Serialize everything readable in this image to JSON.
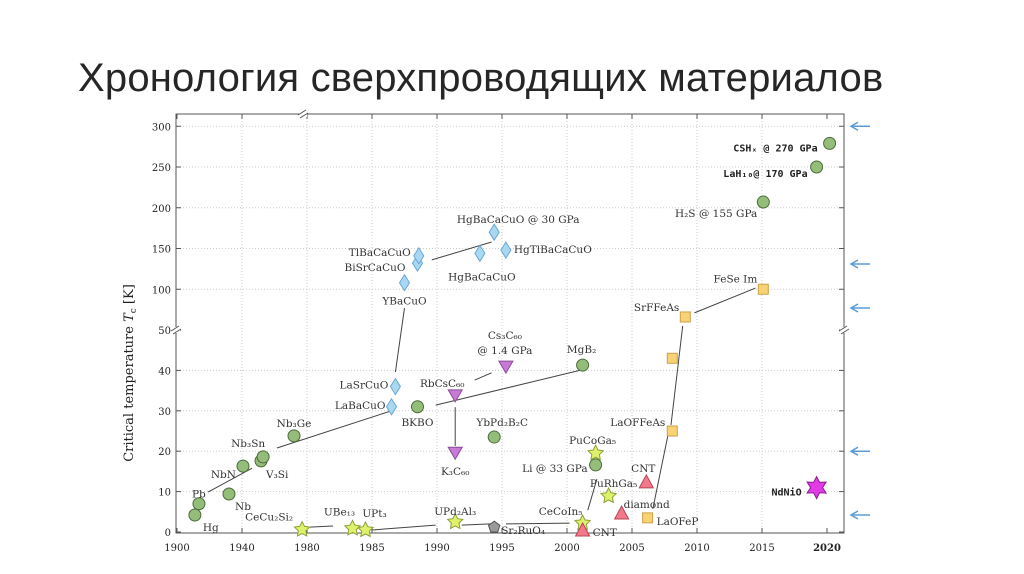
{
  "slide": {
    "title": "Хронология сверхпроводящих материалов"
  },
  "chart_data": {
    "type": "scatter",
    "title": "",
    "ylabel": "Critical temperature T_c [K]",
    "ylabel_parts": {
      "main": "Critical temperature ",
      "symbol": "T",
      "sub": "c",
      "unit": " [K]"
    },
    "xlabel": "",
    "x_axis": {
      "scale": "piecewise (compressed 1900–1980, expanded 1980–2020)",
      "range": [
        1900,
        2020
      ],
      "ticks": [
        1900,
        1940,
        1980,
        1985,
        1990,
        1995,
        2000,
        2005,
        2010,
        2015,
        2020
      ],
      "tick_labels": [
        "1900",
        "1940",
        "1980",
        "1985",
        "1990",
        "1995",
        "2000",
        "2005",
        "2010",
        "2015",
        "2020"
      ]
    },
    "y_axis": {
      "scale": "broken axis at 50 (expanded 0–50, compressed 50–300)",
      "range": [
        0,
        300
      ],
      "ticks": [
        0,
        10,
        20,
        30,
        40,
        50,
        100,
        150,
        200,
        250,
        300
      ],
      "tick_labels": [
        "0",
        "10",
        "20",
        "30",
        "40",
        "50",
        "100",
        "150",
        "200",
        "250",
        "300"
      ]
    },
    "grid": true,
    "marker_colors": {
      "circle": "#93bd78",
      "diamond": "#a9d8f3",
      "tri_down": "#c77ad6",
      "star": "#dff06a",
      "pentagon": "#9a9a9a",
      "tri_up": "#f07a8a",
      "square": "#f8d274",
      "hexagram": "#e23be6"
    },
    "points": [
      {
        "label": "Hg",
        "x": 1911,
        "y": 4.2,
        "marker": "circle"
      },
      {
        "label": "Pb",
        "x": 1913.5,
        "y": 7,
        "marker": "circle"
      },
      {
        "label": "Nb",
        "x": 1932,
        "y": 9.4,
        "marker": "circle"
      },
      {
        "label": "NbN",
        "x": 1940.6,
        "y": 16.3,
        "marker": "circle"
      },
      {
        "label": "V₃Si",
        "x": 1951.7,
        "y": 17.6,
        "marker": "circle"
      },
      {
        "label": "Nb₃Sn",
        "x": 1953,
        "y": 18.6,
        "marker": "circle"
      },
      {
        "label": "Nb₃Ge",
        "x": 1972,
        "y": 23.8,
        "marker": "circle"
      },
      {
        "label": "BKBO",
        "x": 1988.5,
        "y": 31,
        "marker": "circle"
      },
      {
        "label": "LaBaCuO",
        "x": 1986.5,
        "y": 31,
        "marker": "diamond"
      },
      {
        "label": "LaSrCuO",
        "x": 1986.8,
        "y": 36,
        "marker": "diamond"
      },
      {
        "label": "YBaCuO",
        "x": 1987.5,
        "y": 108,
        "marker": "diamond"
      },
      {
        "label": "BiSrCaCuO",
        "x": 1988.5,
        "y": 132,
        "marker": "diamond"
      },
      {
        "label": "TlBaCaCuO",
        "x": 1988.6,
        "y": 141,
        "marker": "diamond"
      },
      {
        "label": "HgBaCaCuO",
        "x": 1993.3,
        "y": 144,
        "marker": "diamond"
      },
      {
        "label": "HgBaCaCuO @ 30 GPa",
        "x": 1994.4,
        "y": 170,
        "marker": "diamond"
      },
      {
        "label": "HgTlBaCaCuO",
        "x": 1995.3,
        "y": 148,
        "marker": "diamond"
      },
      {
        "label": "K₃C₆₀",
        "x": 1991.4,
        "y": 19.5,
        "marker": "tri_down"
      },
      {
        "label": "RbCsC₆₀",
        "x": 1991.4,
        "y": 33.7,
        "marker": "tri_down"
      },
      {
        "label": "Cs₃C₆₀",
        "label2": "@ 1.4 GPa",
        "x": 1995.3,
        "y": 40.8,
        "marker": "tri_down"
      },
      {
        "label": "MgB₂",
        "x": 2001.2,
        "y": 41.3,
        "marker": "circle"
      },
      {
        "label": "YbPd₂B₂C",
        "x": 1994.4,
        "y": 23.5,
        "marker": "circle"
      },
      {
        "label": "Li @ 33 GPa",
        "x": 2002.2,
        "y": 16.6,
        "marker": "circle"
      },
      {
        "label": "PuCoGa₅",
        "x": 2002.2,
        "y": 19.5,
        "marker": "star"
      },
      {
        "label": "PuRhGa₅",
        "x": 2003.2,
        "y": 8.9,
        "marker": "star"
      },
      {
        "label": "CeCoIn₅",
        "x": 2001.2,
        "y": 2.2,
        "marker": "star"
      },
      {
        "label": "Sr₂RuO₄",
        "x": 1994.4,
        "y": 1.2,
        "marker": "pentagon"
      },
      {
        "label": "UPd₂Al₃",
        "x": 1991.4,
        "y": 2.5,
        "marker": "star"
      },
      {
        "label": "UPt₃",
        "x": 1984.5,
        "y": 0.5,
        "marker": "star"
      },
      {
        "label": "UBe₁₃",
        "x": 1983.5,
        "y": 0.9,
        "marker": "star"
      },
      {
        "label": "CeCu₂Si₂",
        "x": 1977,
        "y": 0.6,
        "marker": "star"
      },
      {
        "label": "CNT",
        "x": 2001.2,
        "y": 0.5,
        "marker": "tri_up"
      },
      {
        "label": "diamond",
        "x": 2004.2,
        "y": 4.7,
        "marker": "tri_up"
      },
      {
        "label": "CNT",
        "x": 2006.1,
        "y": 12.4,
        "marker": "tri_up"
      },
      {
        "label": "LaOFeP",
        "x": 2006.2,
        "y": 3.5,
        "marker": "square"
      },
      {
        "label": "LaOFFeAs",
        "x": 2008.1,
        "y": 25,
        "marker": "square"
      },
      {
        "label": "",
        "x": 2008.1,
        "y": 43,
        "marker": "square"
      },
      {
        "label": "SrFFeAs",
        "x": 2009.1,
        "y": 66,
        "marker": "square"
      },
      {
        "label": "FeSe   Im",
        "x": 2015.1,
        "y": 100,
        "marker": "square"
      },
      {
        "label": "H₂S @ 155 GPa",
        "x": 2015.1,
        "y": 207,
        "marker": "circle"
      },
      {
        "label": "LaH₁₀@  170 GPa",
        "x": 2019.2,
        "y": 250,
        "marker": "circle"
      },
      {
        "label": "CSHₓ @  270 GPa",
        "x": 2020.2,
        "y": 279,
        "marker": "circle"
      },
      {
        "label": "NdNiO",
        "x": 2019.2,
        "y": 11,
        "marker": "hexagram"
      }
    ],
    "trend_lines": [
      [
        [
          1919.1,
          9.9
        ],
        [
          1946.2,
          15.8
        ]
      ],
      [
        [
          1961.5,
          20.8
        ],
        [
          1986.5,
          30
        ]
      ],
      [
        [
          1989.9,
          31.4
        ],
        [
          2001.1,
          40.1
        ]
      ],
      [
        [
          1992.9,
          37.6
        ],
        [
          1994.2,
          39.4
        ]
      ],
      [
        [
          1991.4,
          21.3
        ],
        [
          1991.4,
          30.9
        ]
      ],
      [
        [
          1986.8,
          39.6
        ],
        [
          1987.5,
          77
        ]
      ],
      [
        [
          1989.6,
          136
        ],
        [
          1994.2,
          158
        ]
      ],
      [
        [
          1980.2,
          1.2
        ],
        [
          1982,
          1.5
        ]
      ],
      [
        [
          1985,
          0.5
        ],
        [
          1989.9,
          1.7
        ]
      ],
      [
        [
          1991.9,
          1.7
        ],
        [
          1994.1,
          2
        ]
      ],
      [
        [
          1995.3,
          2
        ],
        [
          2000.2,
          2.2
        ]
      ],
      [
        [
          2001.6,
          5.4
        ],
        [
          2002.3,
          13.1
        ]
      ],
      [
        [
          2006.6,
          5.7
        ],
        [
          2007.8,
          24.5
        ]
      ],
      [
        [
          2008,
          26.5
        ],
        [
          2008.9,
          55
        ]
      ],
      [
        [
          2009.8,
          71
        ],
        [
          2014.5,
          101.5
        ]
      ]
    ],
    "reference_arrows": {
      "color": "#5b9bd5",
      "y_values": [
        300,
        131,
        77,
        20,
        4.2
      ]
    }
  }
}
